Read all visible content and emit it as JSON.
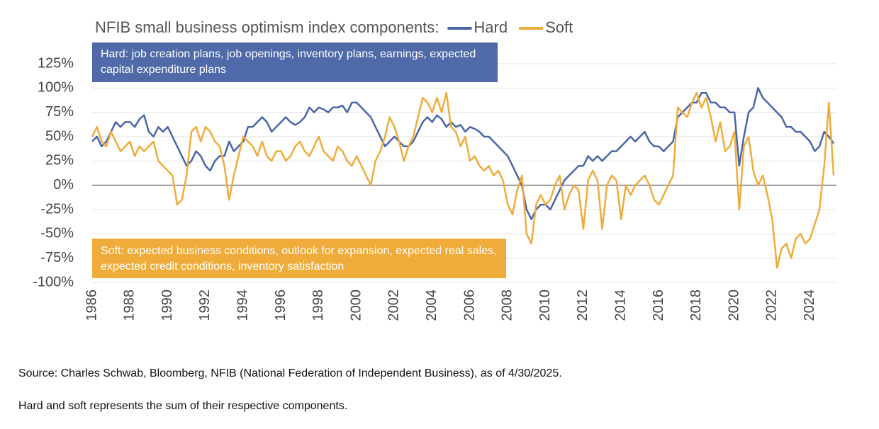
{
  "chart_data": {
    "type": "line",
    "title": "NFIB small business optimism index components:",
    "annotations": [
      "Hard: job creation plans, job openings, inventory plans, earnings, expected capital expenditure plans",
      "Soft: expected business conditions, outlook for expansion, expected real sales, expected credit conditions, inventory satisfaction"
    ],
    "source": "Source: Charles Schwab, Bloomberg, NFIB (National Federation of Independent Business), as of 4/30/2025.",
    "note": "Hard and soft represents the sum of their respective components.",
    "xlim": [
      1986,
      2025.4
    ],
    "ylim": [
      -100,
      125
    ],
    "xticks": [
      1986,
      1988,
      1990,
      1992,
      1994,
      1996,
      1998,
      2000,
      2002,
      2004,
      2006,
      2008,
      2010,
      2012,
      2014,
      2016,
      2018,
      2020,
      2022,
      2024
    ],
    "yticks": [
      {
        "value": -100,
        "label": "-100%"
      },
      {
        "value": -75,
        "label": "-75%"
      },
      {
        "value": -50,
        "label": "-50%"
      },
      {
        "value": -25,
        "label": "-25%"
      },
      {
        "value": 0,
        "label": "0%"
      },
      {
        "value": 25,
        "label": "25%"
      },
      {
        "value": 50,
        "label": "50%"
      },
      {
        "value": 75,
        "label": "75%"
      },
      {
        "value": 100,
        "label": "100%"
      },
      {
        "value": 125,
        "label": "125%"
      }
    ],
    "grid": true,
    "x": [
      1986,
      1986.25,
      1986.5,
      1986.75,
      1987,
      1987.25,
      1987.5,
      1987.75,
      1988,
      1988.25,
      1988.5,
      1988.75,
      1989,
      1989.25,
      1989.5,
      1989.75,
      1990,
      1990.25,
      1990.5,
      1990.75,
      1991,
      1991.25,
      1991.5,
      1991.75,
      1992,
      1992.25,
      1992.5,
      1992.75,
      1993,
      1993.25,
      1993.5,
      1993.75,
      1994,
      1994.25,
      1994.5,
      1994.75,
      1995,
      1995.25,
      1995.5,
      1995.75,
      1996,
      1996.25,
      1996.5,
      1996.75,
      1997,
      1997.25,
      1997.5,
      1997.75,
      1998,
      1998.25,
      1998.5,
      1998.75,
      1999,
      1999.25,
      1999.5,
      1999.75,
      2000,
      2000.25,
      2000.5,
      2000.75,
      2001,
      2001.25,
      2001.5,
      2001.75,
      2002,
      2002.25,
      2002.5,
      2002.75,
      2003,
      2003.25,
      2003.5,
      2003.75,
      2004,
      2004.25,
      2004.5,
      2004.75,
      2005,
      2005.25,
      2005.5,
      2005.75,
      2006,
      2006.25,
      2006.5,
      2006.75,
      2007,
      2007.25,
      2007.5,
      2007.75,
      2008,
      2008.25,
      2008.5,
      2008.75,
      2009,
      2009.25,
      2009.5,
      2009.75,
      2010,
      2010.25,
      2010.5,
      2010.75,
      2011,
      2011.25,
      2011.5,
      2011.75,
      2012,
      2012.25,
      2012.5,
      2012.75,
      2013,
      2013.25,
      2013.5,
      2013.75,
      2014,
      2014.25,
      2014.5,
      2014.75,
      2015,
      2015.25,
      2015.5,
      2015.75,
      2016,
      2016.25,
      2016.5,
      2016.75,
      2017,
      2017.25,
      2017.5,
      2017.75,
      2018,
      2018.25,
      2018.5,
      2018.75,
      2019,
      2019.25,
      2019.5,
      2019.75,
      2020,
      2020.25,
      2020.5,
      2020.75,
      2021,
      2021.25,
      2021.5,
      2021.75,
      2022,
      2022.25,
      2022.5,
      2022.75,
      2023,
      2023.25,
      2023.5,
      2023.75,
      2024,
      2024.25,
      2024.5,
      2024.75,
      2025,
      2025.25
    ],
    "series": [
      {
        "name": "Hard",
        "color": "#4a65a8",
        "values": [
          45,
          50,
          40,
          45,
          55,
          65,
          60,
          65,
          65,
          60,
          68,
          72,
          55,
          50,
          60,
          55,
          60,
          50,
          40,
          30,
          20,
          25,
          35,
          30,
          20,
          15,
          25,
          30,
          30,
          45,
          35,
          40,
          45,
          60,
          60,
          65,
          70,
          65,
          55,
          60,
          65,
          70,
          65,
          62,
          65,
          70,
          80,
          75,
          80,
          78,
          75,
          80,
          80,
          82,
          75,
          85,
          85,
          80,
          75,
          70,
          60,
          50,
          40,
          45,
          50,
          45,
          40,
          40,
          45,
          55,
          65,
          70,
          65,
          72,
          68,
          60,
          65,
          60,
          62,
          55,
          60,
          58,
          55,
          50,
          50,
          45,
          40,
          35,
          30,
          20,
          10,
          0,
          -25,
          -35,
          -25,
          -20,
          -20,
          -25,
          -15,
          -5,
          5,
          10,
          15,
          20,
          20,
          30,
          25,
          30,
          25,
          30,
          35,
          35,
          40,
          45,
          50,
          45,
          50,
          55,
          45,
          40,
          40,
          35,
          40,
          45,
          70,
          75,
          80,
          85,
          85,
          95,
          95,
          85,
          85,
          80,
          80,
          75,
          75,
          20,
          50,
          75,
          80,
          100,
          90,
          85,
          80,
          75,
          70,
          60,
          60,
          55,
          55,
          50,
          45,
          35,
          40,
          55,
          50,
          43
        ]
      },
      {
        "name": "Soft",
        "color": "#f0ac3a",
        "values": [
          50,
          60,
          45,
          40,
          55,
          45,
          35,
          40,
          45,
          30,
          40,
          35,
          40,
          45,
          25,
          20,
          15,
          10,
          -20,
          -15,
          10,
          55,
          60,
          45,
          60,
          55,
          45,
          40,
          20,
          -15,
          10,
          30,
          50,
          45,
          40,
          30,
          45,
          30,
          25,
          35,
          35,
          25,
          30,
          40,
          45,
          35,
          30,
          40,
          50,
          35,
          30,
          25,
          40,
          35,
          25,
          20,
          30,
          20,
          10,
          0,
          25,
          35,
          50,
          70,
          60,
          45,
          25,
          40,
          50,
          70,
          90,
          85,
          75,
          90,
          75,
          95,
          60,
          55,
          40,
          50,
          25,
          30,
          20,
          15,
          20,
          10,
          15,
          5,
          -20,
          -30,
          -5,
          10,
          -50,
          -60,
          -20,
          -10,
          -20,
          -15,
          0,
          10,
          -25,
          -10,
          0,
          -5,
          -45,
          5,
          15,
          5,
          -45,
          0,
          10,
          5,
          -35,
          0,
          -10,
          0,
          5,
          10,
          0,
          -15,
          -20,
          -10,
          0,
          10,
          80,
          75,
          70,
          85,
          95,
          80,
          90,
          70,
          45,
          65,
          35,
          40,
          55,
          -25,
          40,
          50,
          15,
          0,
          10,
          -10,
          -35,
          -85,
          -65,
          -60,
          -75,
          -55,
          -50,
          -60,
          -55,
          -40,
          -25,
          20,
          85,
          10
        ]
      }
    ]
  }
}
